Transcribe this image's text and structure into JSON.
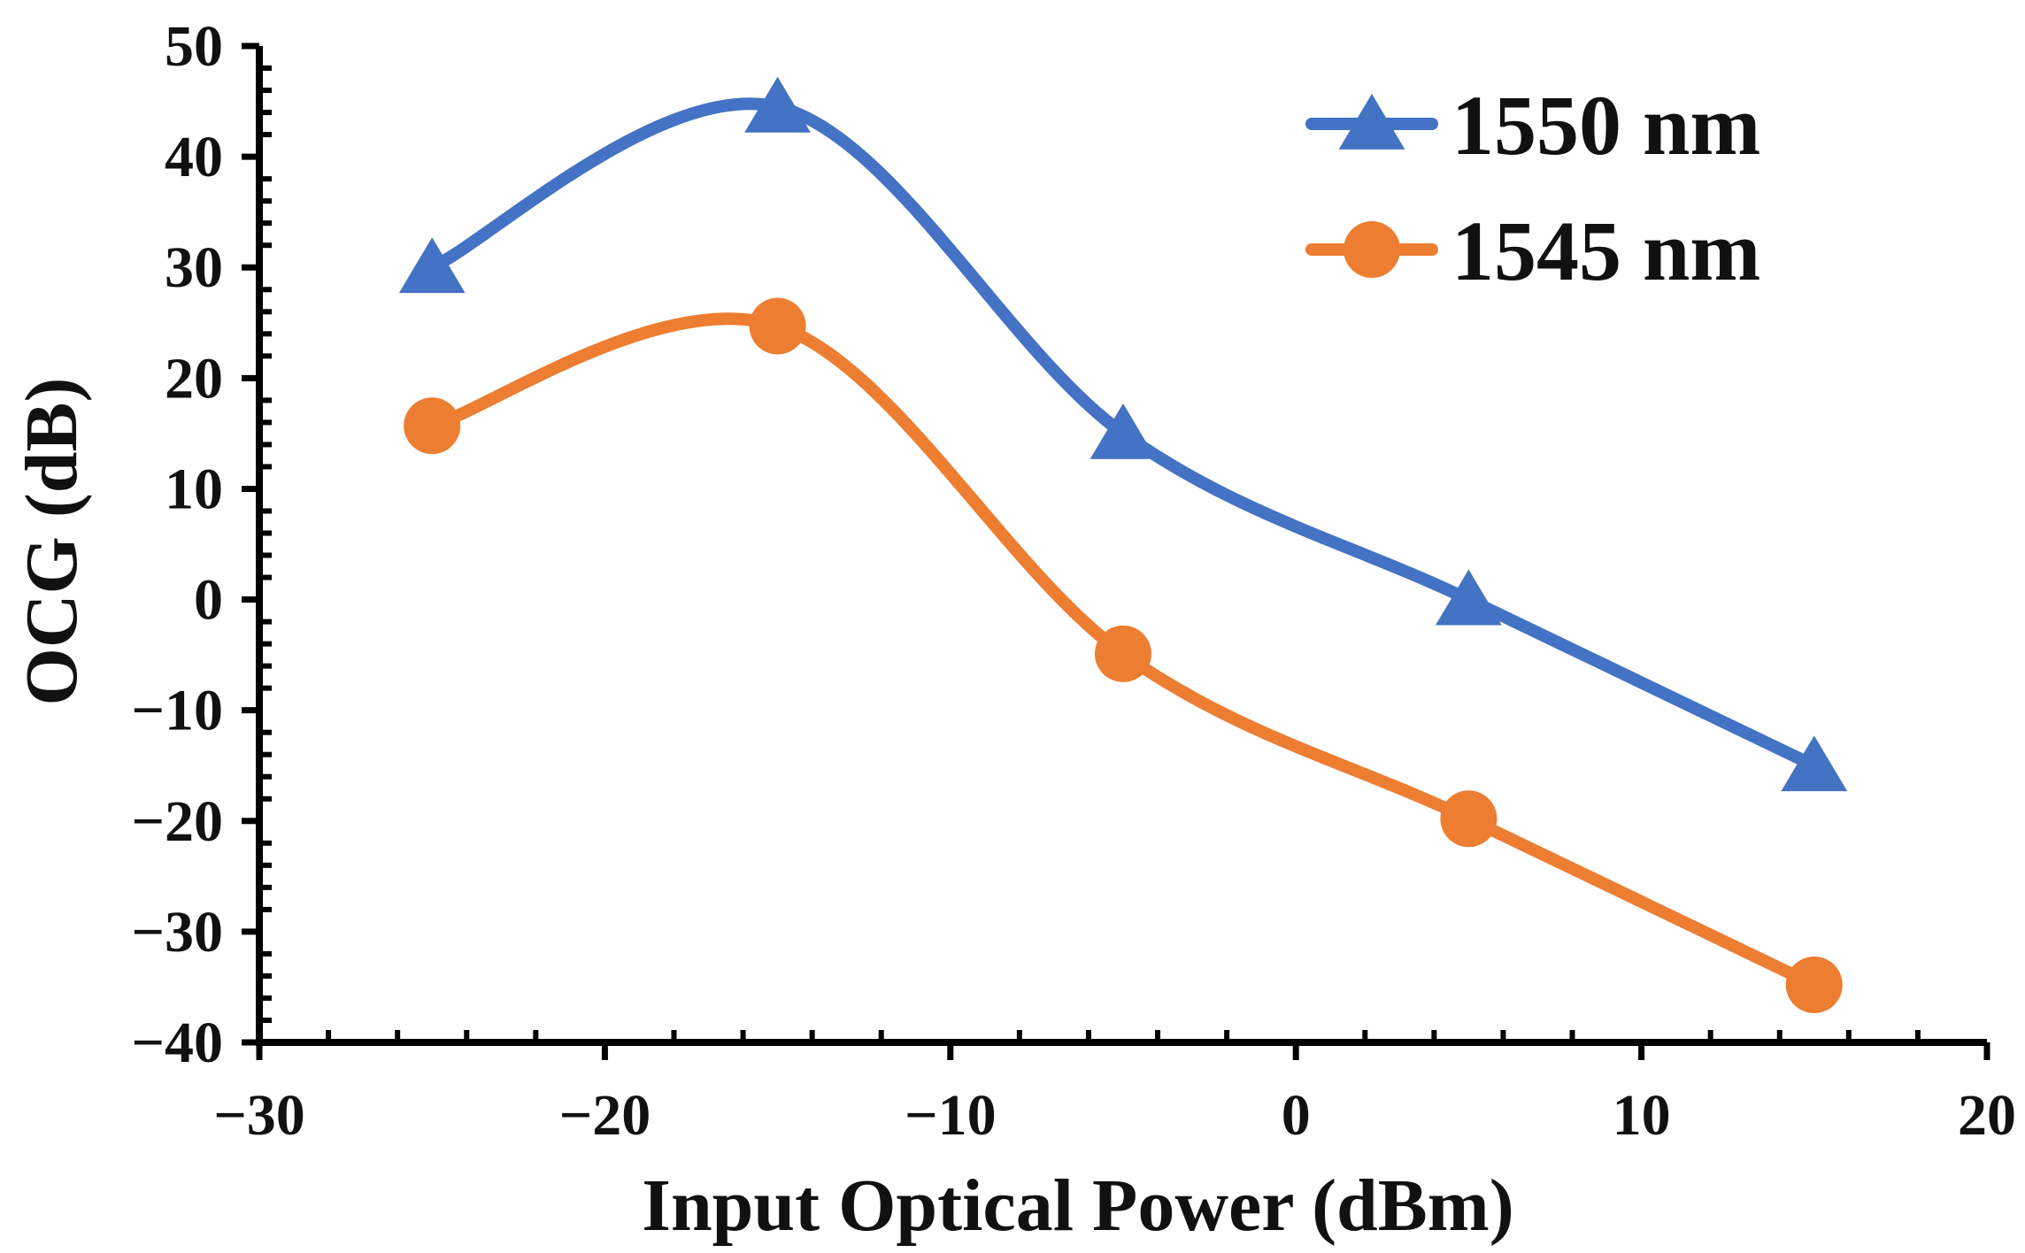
{
  "chart_data": {
    "type": "line",
    "title": "",
    "xlabel": "Input Optical Power (dBm)",
    "ylabel": "OCG (dB)",
    "xlim": [
      -30,
      20
    ],
    "ylim": [
      -40,
      50
    ],
    "x_ticks": [
      -30,
      -20,
      -10,
      0,
      10,
      20
    ],
    "y_ticks": [
      -40,
      -30,
      -20,
      -10,
      0,
      10,
      20,
      30,
      40,
      50
    ],
    "x_tick_labels": [
      "−30",
      "−20",
      "−10",
      "0",
      "10",
      "20"
    ],
    "y_tick_labels": [
      "−40",
      "−30",
      "−20",
      "−10",
      "0",
      "10",
      "20",
      "30",
      "40",
      "50"
    ],
    "grid": false,
    "legend_position": "top-right",
    "smooth": true,
    "x": [
      -25,
      -15,
      -5,
      5,
      15
    ],
    "series": [
      {
        "name": "1550 nm",
        "values": [
          30,
          44.5,
          15,
          0,
          -15
        ],
        "color": "#4472C4",
        "marker": "triangle"
      },
      {
        "name": "1545 nm",
        "values": [
          15.7,
          24.7,
          -4.9,
          -19.8,
          -34.8
        ],
        "color": "#ED7D31",
        "marker": "circle"
      }
    ]
  }
}
